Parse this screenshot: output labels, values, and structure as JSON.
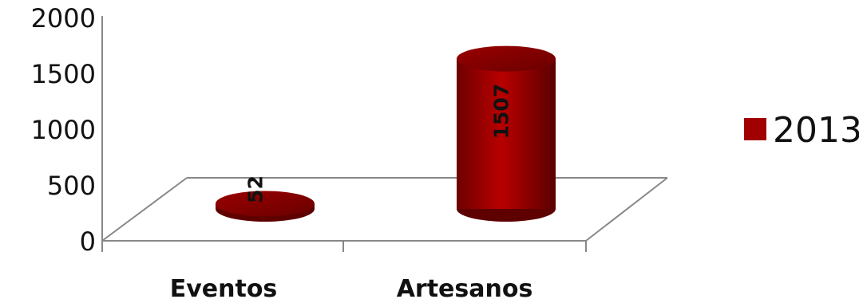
{
  "chart_data": {
    "type": "bar",
    "shape": "cylinder",
    "perspective": "3d",
    "categories": [
      "Eventos",
      "Artesanos"
    ],
    "series": [
      {
        "name": "2013",
        "values": [
          52,
          1507
        ],
        "color": "#a00000"
      }
    ],
    "ylim": [
      0,
      2000
    ],
    "yticks": [
      "0",
      "500",
      "1000",
      "1500",
      "2000"
    ],
    "data_labels": [
      "52",
      "1507"
    ],
    "legend": {
      "position": "right",
      "entries": [
        "2013"
      ]
    },
    "grid": false,
    "title": "",
    "xlabel": "",
    "ylabel": ""
  },
  "colors": {
    "series": "#a00000",
    "series_dark": "#5e0000",
    "series_top": "#8c0000",
    "axis": "#888888",
    "text": "#111111"
  }
}
